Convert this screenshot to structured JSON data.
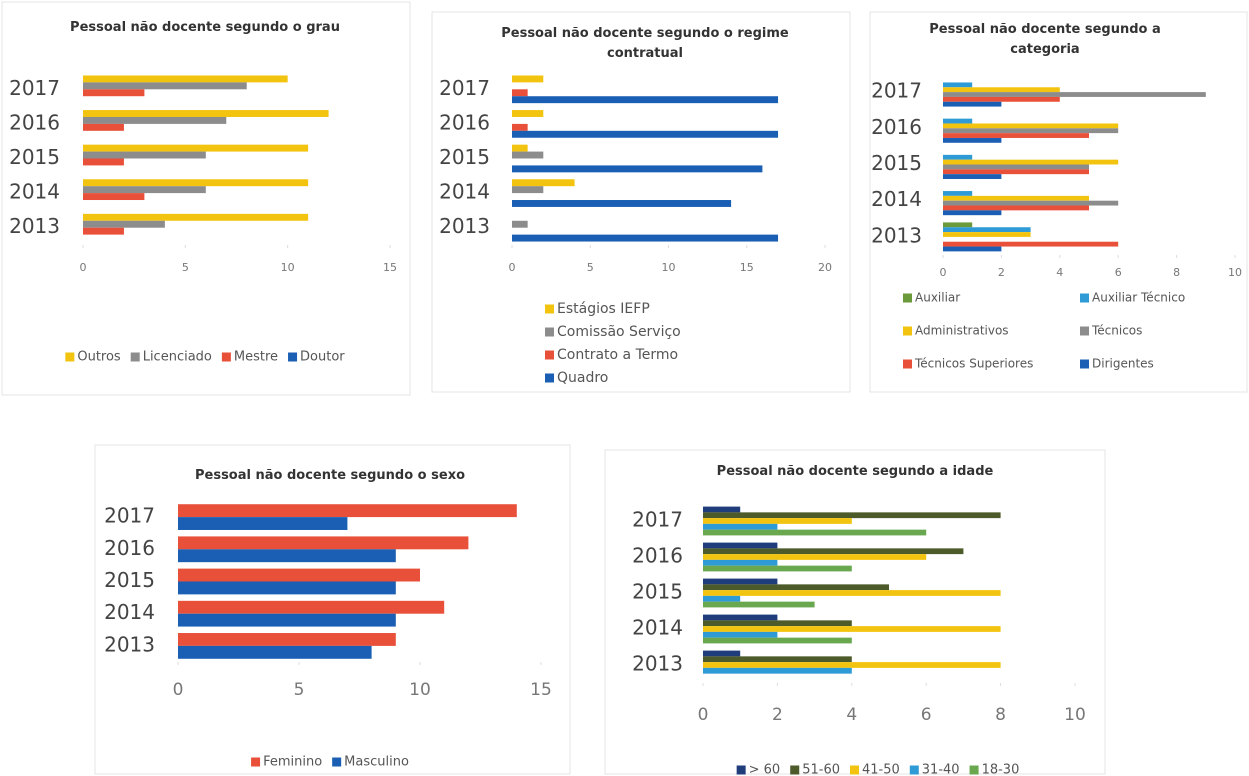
{
  "chart_data": [
    {
      "type": "bar",
      "orientation": "horizontal",
      "title": "Pessoal não docente segundo o grau",
      "categories": [
        "2017",
        "2016",
        "2015",
        "2014",
        "2013"
      ],
      "series": [
        {
          "name": "Outros",
          "color": "#f2c40f",
          "values": [
            10,
            12,
            11,
            11,
            11
          ]
        },
        {
          "name": "Licenciado",
          "color": "#8c8c8c",
          "values": [
            8,
            7,
            6,
            6,
            4
          ]
        },
        {
          "name": "Mestre",
          "color": "#e8503a",
          "values": [
            3,
            2,
            2,
            3,
            2
          ]
        },
        {
          "name": "Doutor",
          "color": "#1a5fb4",
          "values": [
            0,
            0,
            0,
            0,
            0
          ]
        }
      ],
      "xlim": [
        0,
        15
      ],
      "xticks": [
        0,
        5,
        10,
        15
      ]
    },
    {
      "type": "bar",
      "orientation": "horizontal",
      "title": "Pessoal não docente segundo o regime contratual",
      "categories": [
        "2017",
        "2016",
        "2015",
        "2014",
        "2013"
      ],
      "series": [
        {
          "name": "Estágios IEFP",
          "color": "#f2c40f",
          "values": [
            2,
            2,
            1,
            4,
            0
          ]
        },
        {
          "name": "Comissão Serviço",
          "color": "#8c8c8c",
          "values": [
            0,
            0,
            2,
            2,
            1
          ]
        },
        {
          "name": "Contrato a Termo",
          "color": "#e8503a",
          "values": [
            1,
            1,
            0,
            0,
            0
          ]
        },
        {
          "name": "Quadro",
          "color": "#1a5fb4",
          "values": [
            17,
            17,
            16,
            14,
            17
          ]
        }
      ],
      "xlim": [
        0,
        20
      ],
      "xticks": [
        0,
        5,
        10,
        15,
        20
      ]
    },
    {
      "type": "bar",
      "orientation": "horizontal",
      "title": "Pessoal não docente segundo a categoria",
      "categories": [
        "2017",
        "2016",
        "2015",
        "2014",
        "2013"
      ],
      "series": [
        {
          "name": "Auxiliar",
          "color": "#6a9a3a",
          "values": [
            0,
            0,
            0,
            0,
            1
          ]
        },
        {
          "name": "Auxiliar Técnico",
          "color": "#2e9bd6",
          "values": [
            1,
            1,
            1,
            1,
            3
          ]
        },
        {
          "name": "Administrativos",
          "color": "#f2c40f",
          "values": [
            4,
            6,
            6,
            5,
            3
          ]
        },
        {
          "name": "Técnicos",
          "color": "#8c8c8c",
          "values": [
            9,
            6,
            5,
            6,
            0
          ]
        },
        {
          "name": "Técnicos Superiores",
          "color": "#e8503a",
          "values": [
            4,
            5,
            5,
            5,
            6
          ]
        },
        {
          "name": "Dirigentes",
          "color": "#1a5fb4",
          "values": [
            2,
            2,
            2,
            2,
            2
          ]
        }
      ],
      "xlim": [
        0,
        10
      ],
      "xticks": [
        0,
        2,
        4,
        6,
        8,
        10
      ]
    },
    {
      "type": "bar",
      "orientation": "horizontal",
      "title": "Pessoal não docente segundo o sexo",
      "categories": [
        "2017",
        "2016",
        "2015",
        "2014",
        "2013"
      ],
      "series": [
        {
          "name": "Feminino",
          "color": "#e8503a",
          "values": [
            14,
            12,
            10,
            11,
            9
          ]
        },
        {
          "name": "Masculino",
          "color": "#1a5fb4",
          "values": [
            7,
            9,
            9,
            9,
            8
          ]
        }
      ],
      "xlim": [
        0,
        15
      ],
      "xticks": [
        0,
        5,
        10,
        15
      ]
    },
    {
      "type": "bar",
      "orientation": "horizontal",
      "title": "Pessoal não docente segundo a idade",
      "categories": [
        "2017",
        "2016",
        "2015",
        "2014",
        "2013"
      ],
      "series": [
        {
          "name": "> 60",
          "color": "#1f3d7a",
          "values": [
            1,
            2,
            2,
            2,
            1
          ]
        },
        {
          "name": "51-60",
          "color": "#4d5a2a",
          "values": [
            8,
            7,
            5,
            4,
            4
          ]
        },
        {
          "name": "41-50",
          "color": "#f2c40f",
          "values": [
            4,
            6,
            8,
            8,
            8
          ]
        },
        {
          "name": "31-40",
          "color": "#2e9bd6",
          "values": [
            2,
            2,
            1,
            2,
            4
          ]
        },
        {
          "name": "18-30",
          "color": "#6aa84f",
          "values": [
            6,
            4,
            3,
            4,
            0
          ]
        }
      ],
      "xlim": [
        0,
        10
      ],
      "xticks": [
        0,
        2,
        4,
        6,
        8,
        10
      ]
    }
  ]
}
